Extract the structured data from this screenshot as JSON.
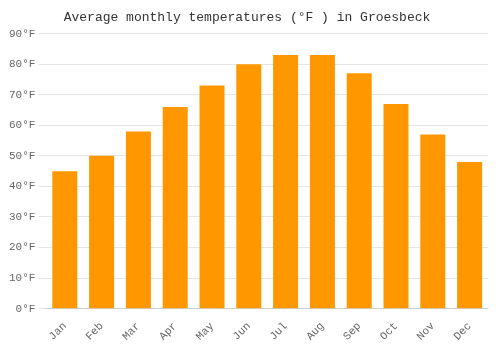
{
  "chart_data": {
    "type": "bar",
    "title": "Average monthly temperatures (°F ) in Groesbeck",
    "categories": [
      "Jan",
      "Feb",
      "Mar",
      "Apr",
      "May",
      "Jun",
      "Jul",
      "Aug",
      "Sep",
      "Oct",
      "Nov",
      "Dec"
    ],
    "values": [
      45,
      50,
      58,
      66,
      73,
      80,
      83,
      83,
      77,
      67,
      57,
      48
    ],
    "color": "#FF9800",
    "ylim": [
      0,
      90
    ],
    "yticks": [
      {
        "value": 0,
        "label": "0°F"
      },
      {
        "value": 10,
        "label": "10°F"
      },
      {
        "value": 20,
        "label": "20°F"
      },
      {
        "value": 30,
        "label": "30°F"
      },
      {
        "value": 40,
        "label": "40°F"
      },
      {
        "value": 50,
        "label": "50°F"
      },
      {
        "value": 60,
        "label": "60°F"
      },
      {
        "value": 70,
        "label": "70°F"
      },
      {
        "value": 80,
        "label": "80°F"
      },
      {
        "value": 90,
        "label": "90°F"
      }
    ],
    "grid": true
  }
}
